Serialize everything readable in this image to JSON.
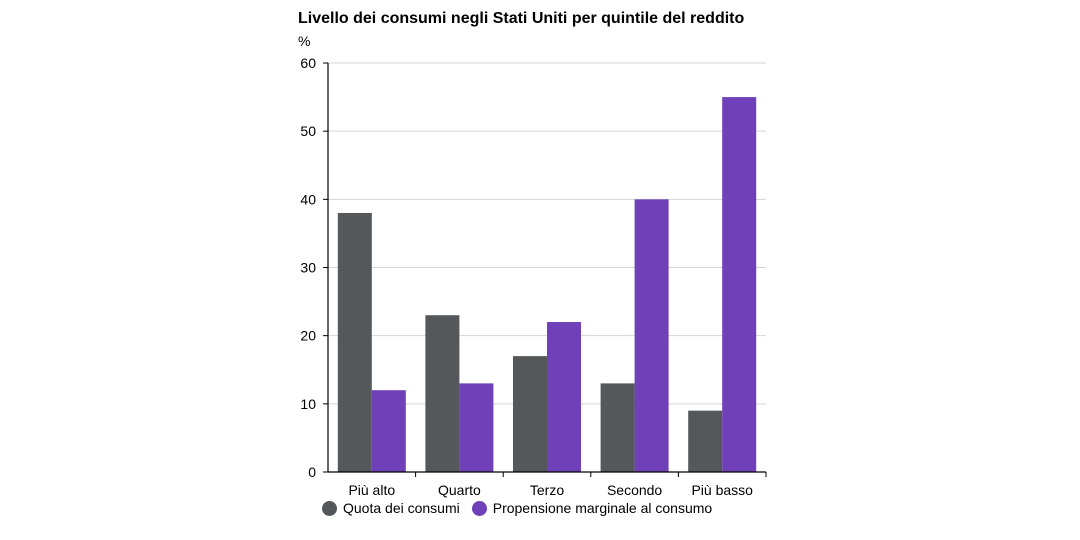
{
  "chart_data": {
    "type": "bar",
    "title": "Livello dei consumi negli Stati Uniti per quintile del reddito",
    "unit": "%",
    "categories": [
      "Più alto",
      "Quarto",
      "Terzo",
      "Secondo",
      "Più basso"
    ],
    "series": [
      {
        "name": "Quota dei consumi",
        "color": "#55585a",
        "values": [
          38,
          23,
          17,
          13,
          9
        ]
      },
      {
        "name": "Propensione marginale al consumo",
        "color": "#7040b8",
        "values": [
          12,
          13,
          22,
          40,
          55
        ]
      }
    ],
    "ylim": [
      0,
      60
    ],
    "yticks": [
      0,
      10,
      20,
      30,
      40,
      50,
      60
    ],
    "grid": true,
    "legend_position": "bottom"
  }
}
